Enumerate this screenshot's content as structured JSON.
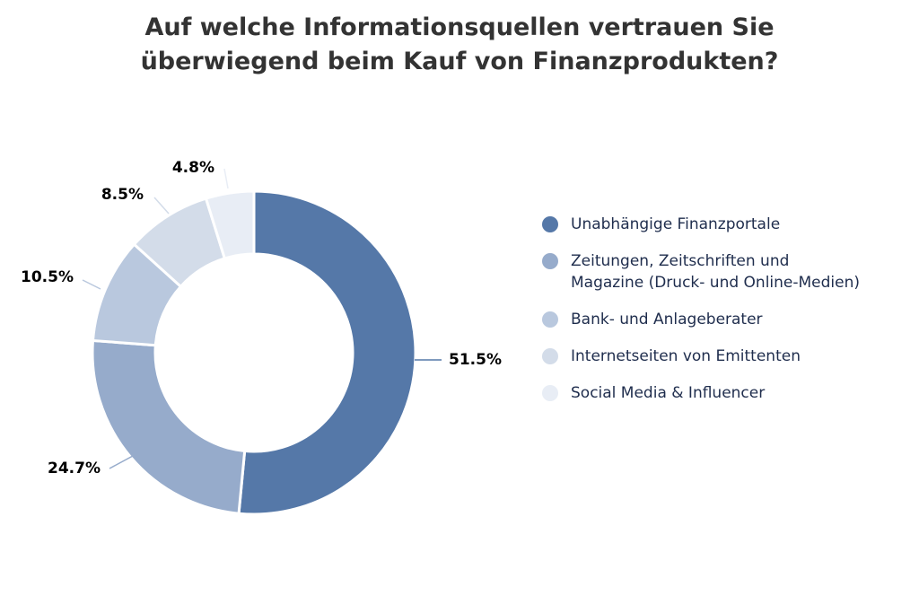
{
  "title_lines": [
    "Auf welche Informationsquellen vertrauen Sie",
    "überwiegend beim Kauf von Finanzprodukten?"
  ],
  "chart_data": {
    "type": "pie",
    "variant": "donut",
    "title": "Auf welche Informationsquellen vertrauen Sie überwiegend beim Kauf von Finanzprodukten?",
    "categories": [
      "Unabhängige Finanzportale",
      "Zeitungen, Zeitschriften und Magazine (Druck- und Online-Medien)",
      "Bank- und Anlageberater",
      "Internetseiten von Emittenten",
      "Social Media & Influencer"
    ],
    "values": [
      51.5,
      24.7,
      10.5,
      8.5,
      4.8
    ],
    "value_labels": [
      "51.5%",
      "24.7%",
      "10.5%",
      "8.5%",
      "4.8%"
    ],
    "colors": [
      "#5578a8",
      "#96abcb",
      "#b9c8de",
      "#d3dce9",
      "#e8edf5"
    ],
    "legend": {
      "position": "right",
      "labels": [
        [
          "Unabhängige Finanzportale"
        ],
        [
          "Zeitungen, Zeitschriften und",
          "Magazine (Druck- und Online-Medien)"
        ],
        [
          "Bank- und Anlageberater"
        ],
        [
          "Internetseiten von Emittenten"
        ],
        [
          "Social Media & Influencer"
        ]
      ]
    }
  }
}
